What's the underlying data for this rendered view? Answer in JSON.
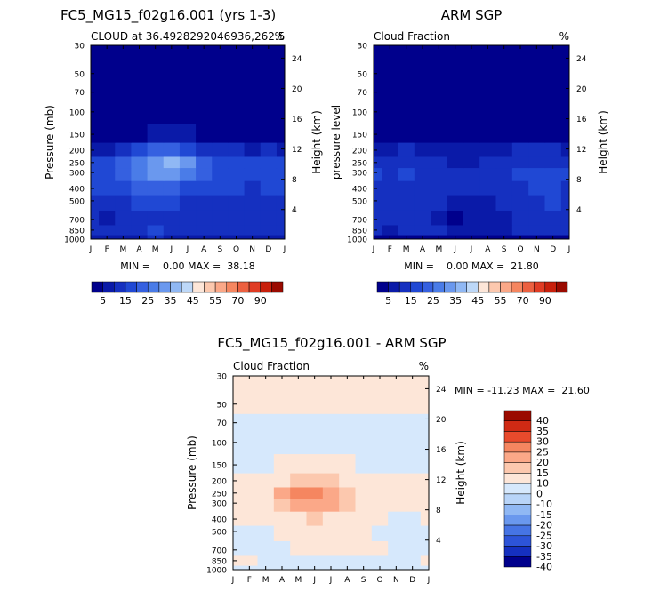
{
  "chart_data": [
    {
      "type": "heatmap",
      "title": "FC5_MG15_f02g16.001 (yrs 1-3)",
      "subtitle_left": "CLOUD at 36.4928292046936,262.5",
      "subtitle_right": "%",
      "ylabel": "Pressure (mb)",
      "ylabel_right": "Height (km)",
      "stats": "MIN =    0.00 MAX =  38.18",
      "min": 0.0,
      "max": 38.18,
      "x_ticks": [
        "J",
        "F",
        "M",
        "A",
        "M",
        "J",
        "J",
        "A",
        "S",
        "O",
        "N",
        "D",
        "J"
      ],
      "y_ticks": [
        "30",
        "50",
        "70",
        "100",
        "150",
        "200",
        "250",
        "300",
        "400",
        "500",
        "700",
        "850",
        "1000"
      ],
      "height_ticks": [
        "24",
        "20",
        "16",
        "12",
        "8",
        "4"
      ],
      "months": [
        1,
        2,
        3,
        4,
        5,
        6,
        7,
        8,
        9,
        10,
        11,
        12,
        13
      ],
      "levels_mb": [
        1000,
        850,
        700,
        500,
        400,
        300,
        250,
        200,
        150,
        100,
        70,
        50,
        30
      ],
      "values": [
        [
          8,
          8,
          9,
          9,
          10,
          9,
          9,
          8,
          8,
          8,
          8,
          8,
          8
        ],
        [
          12,
          11,
          12,
          14,
          15,
          13,
          12,
          11,
          11,
          12,
          11,
          12,
          12
        ],
        [
          10,
          9,
          10,
          12,
          14,
          12,
          11,
          10,
          10,
          11,
          10,
          10,
          10
        ],
        [
          12,
          11,
          13,
          15,
          16,
          15,
          14,
          13,
          12,
          12,
          11,
          11,
          12
        ],
        [
          16,
          15,
          18,
          20,
          22,
          21,
          19,
          17,
          15,
          15,
          14,
          15,
          16
        ],
        [
          18,
          17,
          22,
          26,
          30,
          30,
          27,
          22,
          19,
          18,
          17,
          17,
          18
        ],
        [
          16,
          16,
          22,
          28,
          34,
          36,
          30,
          23,
          18,
          17,
          15,
          15,
          16
        ],
        [
          9,
          9,
          12,
          16,
          20,
          22,
          18,
          14,
          11,
          10,
          9,
          10,
          9
        ],
        [
          1,
          1,
          2,
          3,
          6,
          7,
          5,
          3,
          2,
          2,
          1,
          2,
          1
        ],
        [
          0,
          0,
          0,
          0,
          1,
          1,
          1,
          0,
          0,
          0,
          0,
          0,
          0
        ],
        [
          0,
          0,
          0,
          0,
          0,
          0,
          0,
          0,
          0,
          0,
          0,
          0,
          0
        ],
        [
          0,
          0,
          0,
          0,
          0,
          0,
          0,
          0,
          0,
          0,
          0,
          0,
          0
        ],
        [
          0,
          0,
          0,
          0,
          0,
          0,
          0,
          0,
          0,
          0,
          0,
          0,
          0
        ]
      ]
    },
    {
      "type": "heatmap",
      "title": "ARM SGP",
      "subtitle_left": "Cloud Fraction",
      "subtitle_right": "%",
      "ylabel": "pressure level",
      "ylabel_right": "Height (km)",
      "stats": "MIN =    0.00 MAX =  21.80",
      "min": 0.0,
      "max": 21.8,
      "x_ticks": [
        "J",
        "F",
        "M",
        "A",
        "M",
        "J",
        "J",
        "A",
        "S",
        "O",
        "N",
        "D",
        "J"
      ],
      "y_ticks": [
        "30",
        "50",
        "70",
        "100",
        "150",
        "200",
        "250",
        "300",
        "400",
        "500",
        "700",
        "850",
        "1000"
      ],
      "height_ticks": [
        "24",
        "20",
        "16",
        "12",
        "8",
        "4"
      ],
      "months": [
        1,
        2,
        3,
        4,
        5,
        6,
        7,
        8,
        9,
        10,
        11,
        12,
        13
      ],
      "levels_mb": [
        1000,
        850,
        700,
        500,
        400,
        300,
        250,
        200,
        150,
        100,
        70,
        50,
        30
      ],
      "values": [
        [
          4,
          4,
          4,
          4,
          4,
          4,
          4,
          4,
          4,
          4,
          4,
          4,
          4
        ],
        [
          10,
          9,
          11,
          12,
          11,
          8,
          6,
          7,
          8,
          10,
          12,
          11,
          10
        ],
        [
          12,
          10,
          11,
          11,
          8,
          4,
          5,
          7,
          9,
          11,
          12,
          13,
          12
        ],
        [
          13,
          12,
          13,
          13,
          11,
          9,
          8,
          9,
          11,
          13,
          14,
          15,
          13
        ],
        [
          14,
          13,
          14,
          14,
          13,
          11,
          10,
          11,
          13,
          14,
          15,
          16,
          14
        ],
        [
          15,
          14,
          15,
          14,
          13,
          11,
          11,
          13,
          14,
          15,
          15,
          16,
          15
        ],
        [
          13,
          13,
          13,
          12,
          11,
          9,
          9,
          11,
          12,
          13,
          13,
          14,
          13
        ],
        [
          9,
          9,
          10,
          9,
          8,
          7,
          7,
          8,
          9,
          10,
          10,
          10,
          9
        ],
        [
          2,
          2,
          3,
          3,
          3,
          3,
          3,
          3,
          3,
          3,
          3,
          3,
          2
        ],
        [
          0,
          0,
          0,
          0,
          0,
          0,
          0,
          0,
          0,
          0,
          0,
          0,
          0
        ],
        [
          0,
          0,
          0,
          0,
          0,
          0,
          0,
          0,
          0,
          0,
          0,
          0,
          0
        ],
        [
          0,
          0,
          0,
          0,
          0,
          0,
          0,
          0,
          0,
          0,
          0,
          0,
          0
        ],
        [
          0,
          0,
          0,
          0,
          0,
          0,
          0,
          0,
          0,
          0,
          0,
          0,
          0
        ]
      ]
    },
    {
      "type": "heatmap",
      "title": "FC5_MG15_f02g16.001 - ARM SGP",
      "subtitle_left": "Cloud Fraction",
      "subtitle_right": "%",
      "ylabel": "Pressure (mb)",
      "ylabel_right": "Height (km)",
      "stats": "MIN = -11.23 MAX =  21.60",
      "min": -11.23,
      "max": 21.6,
      "x_ticks": [
        "J",
        "F",
        "M",
        "A",
        "M",
        "J",
        "J",
        "A",
        "S",
        "O",
        "N",
        "D",
        "J"
      ],
      "y_ticks": [
        "30",
        "50",
        "70",
        "100",
        "150",
        "200",
        "250",
        "300",
        "400",
        "500",
        "700",
        "850",
        "1000"
      ],
      "height_ticks": [
        "24",
        "20",
        "16",
        "12",
        "8",
        "4"
      ],
      "months": [
        1,
        2,
        3,
        4,
        5,
        6,
        7,
        8,
        9,
        10,
        11,
        12,
        13
      ],
      "levels_mb": [
        1000,
        850,
        700,
        500,
        400,
        300,
        250,
        200,
        150,
        100,
        70,
        50,
        30
      ],
      "values": [
        [
          -2,
          -2,
          -2,
          -2,
          -2,
          -2,
          -2,
          -2,
          -2,
          -2,
          -2,
          -2,
          -2
        ],
        [
          1,
          1,
          -1,
          -2,
          -3,
          -3,
          -2,
          -1,
          -2,
          -3,
          -3,
          -2,
          1
        ],
        [
          -2,
          -3,
          -2,
          -1,
          2,
          4,
          3,
          2,
          1,
          0,
          -2,
          -3,
          -2
        ],
        [
          -1,
          -2,
          -1,
          2,
          4,
          6,
          5,
          3,
          1,
          -1,
          -2,
          -3,
          -1
        ],
        [
          1,
          1,
          3,
          5,
          8,
          10,
          9,
          6,
          2,
          1,
          -1,
          -1,
          1
        ],
        [
          3,
          3,
          6,
          11,
          16,
          19,
          16,
          10,
          5,
          3,
          1,
          1,
          3
        ],
        [
          3,
          3,
          8,
          15,
          21,
          20,
          18,
          12,
          6,
          4,
          2,
          1,
          3
        ],
        [
          0,
          0,
          2,
          6,
          11,
          13,
          10,
          6,
          2,
          0,
          0,
          0,
          0
        ],
        [
          -1,
          -1,
          -1,
          0,
          2,
          3,
          2,
          0,
          -1,
          -1,
          -1,
          -1,
          -1
        ],
        [
          -1,
          -1,
          -1,
          -1,
          -1,
          -1,
          -1,
          -1,
          -1,
          -1,
          -1,
          -1,
          -1
        ],
        [
          -1,
          -1,
          -1,
          -1,
          -1,
          -1,
          -1,
          -1,
          -1,
          -1,
          -1,
          -1,
          -1
        ],
        [
          1,
          1,
          1,
          1,
          1,
          1,
          1,
          1,
          1,
          1,
          1,
          1,
          1
        ],
        [
          1,
          1,
          1,
          1,
          1,
          1,
          1,
          1,
          1,
          1,
          1,
          1,
          1
        ]
      ]
    }
  ],
  "colorbar_top": {
    "colors": [
      "#00008c",
      "#0a1aa8",
      "#1530c0",
      "#2048d4",
      "#3560e0",
      "#4a7ce8",
      "#6a98ee",
      "#90b8f4",
      "#bdd8f8",
      "#fde6d8",
      "#fcc8ae",
      "#fba888",
      "#f58660",
      "#ec6040",
      "#e03c24",
      "#c8200c",
      "#9a0a00"
    ],
    "labels": [
      "5",
      "15",
      "25",
      "35",
      "45",
      "55",
      "70",
      "90"
    ]
  },
  "colorbar_diff": {
    "colors": [
      "#00008c",
      "#1530c0",
      "#2d54d8",
      "#4674e4",
      "#6a98ee",
      "#90b8f4",
      "#b8d4f8",
      "#d6e8fc",
      "#fde6d8",
      "#fcc8ae",
      "#fba888",
      "#f58660",
      "#e84a2c",
      "#d02a14",
      "#9a0a00"
    ],
    "labels": [
      "40",
      "35",
      "30",
      "25",
      "20",
      "15",
      "10",
      "0",
      "-10",
      "-15",
      "-20",
      "-25",
      "-30",
      "-35",
      "-40"
    ]
  }
}
